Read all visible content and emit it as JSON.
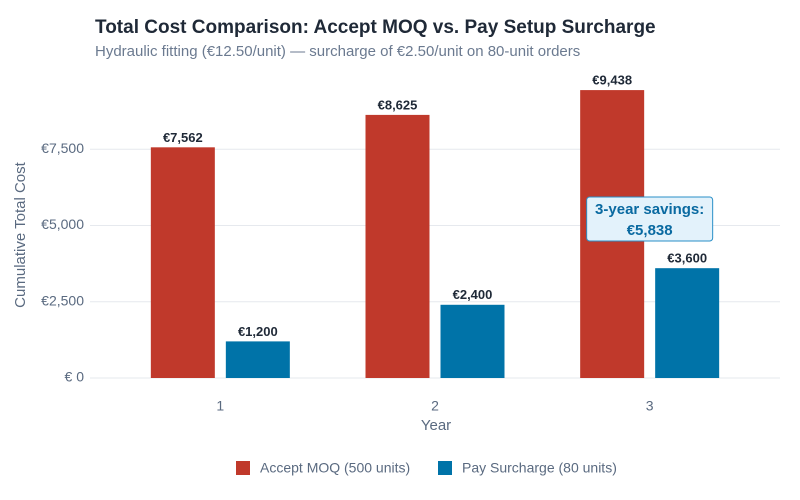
{
  "chart_data": {
    "type": "bar",
    "title": "Total Cost Comparison: Accept MOQ vs. Pay Setup Surcharge",
    "subtitle": "Hydraulic fitting (€12.50/unit) — surcharge of €2.50/unit on 80-unit orders",
    "x_label": "Year",
    "y_label": "Cumulative Total Cost",
    "categories": [
      "1",
      "2",
      "3"
    ],
    "series": [
      {
        "name": "Accept MOQ (500 units)",
        "color": "#c0392b",
        "values": [
          7562,
          8625,
          9438
        ],
        "value_labels": [
          "€7,562",
          "€8,625",
          "€9,438"
        ]
      },
      {
        "name": "Pay Surcharge (80 units)",
        "color": "#0073a8",
        "values": [
          1200,
          2400,
          3600
        ],
        "value_labels": [
          "€1,200",
          "€2,400",
          "€3,600"
        ]
      }
    ],
    "ylim": [
      0,
      9900
    ],
    "yticks": [
      {
        "value": 0,
        "label": "€ 0"
      },
      {
        "value": 2500,
        "label": "€2,500"
      },
      {
        "value": 5000,
        "label": "€5,000"
      },
      {
        "value": 7500,
        "label": "€7,500"
      }
    ],
    "grid": true,
    "legend": "bottom",
    "annotation": {
      "lines": [
        "3-year savings:",
        "€5,838"
      ]
    }
  }
}
